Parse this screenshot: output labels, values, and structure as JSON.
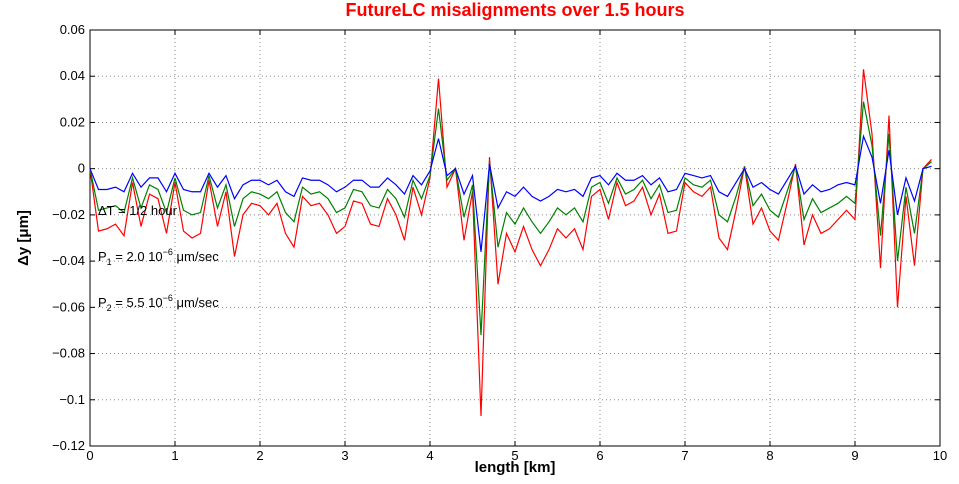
{
  "chart_data": {
    "type": "line",
    "title": "FutureLC misalignments over 1.5 hours",
    "x_label": "length [km]",
    "y_label": "Δy [μm]",
    "xlim": [
      0,
      10
    ],
    "ylim": [
      -0.12,
      0.06
    ],
    "xticks": [
      0,
      1,
      2,
      3,
      4,
      5,
      6,
      7,
      8,
      9,
      10
    ],
    "yticks": [
      {
        "value": -0.12,
        "label": "−0.12"
      },
      {
        "value": -0.1,
        "label": "−0.1"
      },
      {
        "value": -0.08,
        "label": "−0.08"
      },
      {
        "value": -0.06,
        "label": "−0.06"
      },
      {
        "value": -0.04,
        "label": "−0.04"
      },
      {
        "value": -0.02,
        "label": "−0.02"
      },
      0,
      0.02,
      0.04,
      0.06
    ],
    "grid": true,
    "annotations": [
      {
        "base": "ΔT = 1/2 hour"
      },
      {
        "base": "P",
        "sub": "1",
        "mid": " = 2.0 10",
        "sup": "−6",
        "unit": " μm/sec"
      },
      {
        "base": "P",
        "sub": "2",
        "mid": " = 5.5 10",
        "sup": "−6",
        "unit": " μm/sec"
      }
    ],
    "x": [
      0,
      0.1,
      0.2,
      0.3,
      0.4,
      0.5,
      0.6,
      0.7,
      0.8,
      0.9,
      1,
      1.1,
      1.2,
      1.3,
      1.4,
      1.5,
      1.6,
      1.7,
      1.8,
      1.9,
      2,
      2.1,
      2.2,
      2.3,
      2.4,
      2.5,
      2.6,
      2.7,
      2.8,
      2.9,
      3,
      3.1,
      3.2,
      3.3,
      3.4,
      3.5,
      3.6,
      3.7,
      3.8,
      3.9,
      4,
      4.1,
      4.2,
      4.3,
      4.4,
      4.5,
      4.6,
      4.7,
      4.8,
      4.9,
      5,
      5.1,
      5.2,
      5.3,
      5.4,
      5.5,
      5.6,
      5.7,
      5.8,
      5.9,
      6,
      6.1,
      6.2,
      6.3,
      6.4,
      6.5,
      6.6,
      6.7,
      6.8,
      6.9,
      7,
      7.1,
      7.2,
      7.3,
      7.4,
      7.5,
      7.6,
      7.7,
      7.8,
      7.9,
      8,
      8.1,
      8.2,
      8.3,
      8.4,
      8.5,
      8.6,
      8.7,
      8.8,
      8.9,
      9,
      9.1,
      9.2,
      9.3,
      9.4,
      9.5,
      9.6,
      9.7,
      9.8,
      9.9
    ],
    "series": [
      {
        "color": "#ff0000",
        "values": [
          0,
          -0.027,
          -0.026,
          -0.024,
          -0.029,
          -0.006,
          -0.025,
          -0.011,
          -0.013,
          -0.028,
          -0.006,
          -0.027,
          -0.03,
          -0.028,
          -0.005,
          -0.025,
          -0.01,
          -0.038,
          -0.02,
          -0.015,
          -0.016,
          -0.02,
          -0.015,
          -0.028,
          -0.034,
          -0.012,
          -0.016,
          -0.015,
          -0.02,
          -0.028,
          -0.025,
          -0.014,
          -0.015,
          -0.024,
          -0.025,
          -0.013,
          -0.02,
          -0.031,
          -0.008,
          -0.02,
          -0.004,
          0.039,
          -0.008,
          0,
          -0.031,
          -0.01,
          -0.107,
          0.005,
          -0.05,
          -0.028,
          -0.036,
          -0.025,
          -0.035,
          -0.042,
          -0.035,
          -0.026,
          -0.03,
          -0.026,
          -0.035,
          -0.012,
          -0.009,
          -0.022,
          -0.006,
          -0.016,
          -0.014,
          -0.008,
          -0.02,
          -0.011,
          -0.028,
          -0.027,
          -0.006,
          -0.01,
          -0.012,
          -0.008,
          -0.03,
          -0.035,
          -0.018,
          0.001,
          -0.024,
          -0.017,
          -0.027,
          -0.031,
          -0.015,
          0.002,
          -0.033,
          -0.02,
          -0.028,
          -0.026,
          -0.022,
          -0.018,
          -0.022,
          0.043,
          0.015,
          -0.043,
          0.023,
          -0.06,
          -0.012,
          -0.042,
          0,
          0.004
        ]
      },
      {
        "color": "#008000",
        "values": [
          0,
          -0.018,
          -0.017,
          -0.016,
          -0.019,
          -0.004,
          -0.017,
          -0.007,
          -0.009,
          -0.019,
          -0.004,
          -0.018,
          -0.02,
          -0.019,
          -0.003,
          -0.017,
          -0.007,
          -0.025,
          -0.013,
          -0.01,
          -0.011,
          -0.013,
          -0.01,
          -0.019,
          -0.023,
          -0.008,
          -0.011,
          -0.01,
          -0.013,
          -0.019,
          -0.017,
          -0.009,
          -0.01,
          -0.016,
          -0.017,
          -0.009,
          -0.013,
          -0.021,
          -0.005,
          -0.013,
          -0.003,
          0.026,
          -0.005,
          0,
          -0.021,
          -0.007,
          -0.072,
          0.003,
          -0.034,
          -0.019,
          -0.024,
          -0.017,
          -0.023,
          -0.028,
          -0.023,
          -0.017,
          -0.02,
          -0.017,
          -0.023,
          -0.008,
          -0.006,
          -0.015,
          -0.004,
          -0.011,
          -0.009,
          -0.005,
          -0.013,
          -0.007,
          -0.019,
          -0.018,
          -0.004,
          -0.007,
          -0.008,
          -0.005,
          -0.02,
          -0.023,
          -0.012,
          0.001,
          -0.016,
          -0.011,
          -0.018,
          -0.021,
          -0.01,
          0.001,
          -0.022,
          -0.013,
          -0.019,
          -0.017,
          -0.015,
          -0.012,
          -0.015,
          0.029,
          0.01,
          -0.029,
          0.015,
          -0.04,
          -0.008,
          -0.028,
          0,
          0.003
        ]
      },
      {
        "color": "#0000ff",
        "values": [
          0,
          -0.009,
          -0.009,
          -0.008,
          -0.01,
          -0.002,
          -0.008,
          -0.004,
          -0.004,
          -0.01,
          -0.002,
          -0.009,
          -0.01,
          -0.01,
          -0.002,
          -0.008,
          -0.003,
          -0.013,
          -0.007,
          -0.005,
          -0.005,
          -0.007,
          -0.005,
          -0.01,
          -0.012,
          -0.004,
          -0.005,
          -0.005,
          -0.007,
          -0.01,
          -0.008,
          -0.005,
          -0.005,
          -0.008,
          -0.008,
          -0.004,
          -0.007,
          -0.011,
          -0.003,
          -0.007,
          -0.001,
          0.013,
          -0.003,
          0,
          -0.011,
          -0.003,
          -0.036,
          0.002,
          -0.017,
          -0.01,
          -0.012,
          -0.008,
          -0.012,
          -0.014,
          -0.012,
          -0.009,
          -0.01,
          -0.009,
          -0.012,
          -0.004,
          -0.003,
          -0.007,
          -0.002,
          -0.005,
          -0.005,
          -0.003,
          -0.007,
          -0.004,
          -0.01,
          -0.009,
          -0.002,
          -0.003,
          -0.004,
          -0.003,
          -0.01,
          -0.012,
          -0.006,
          0,
          -0.008,
          -0.006,
          -0.009,
          -0.011,
          -0.005,
          0.001,
          -0.011,
          -0.007,
          -0.01,
          -0.009,
          -0.007,
          -0.006,
          -0.007,
          0.014,
          0.005,
          -0.015,
          0.008,
          -0.02,
          -0.004,
          -0.014,
          0,
          0.001
        ]
      }
    ]
  }
}
